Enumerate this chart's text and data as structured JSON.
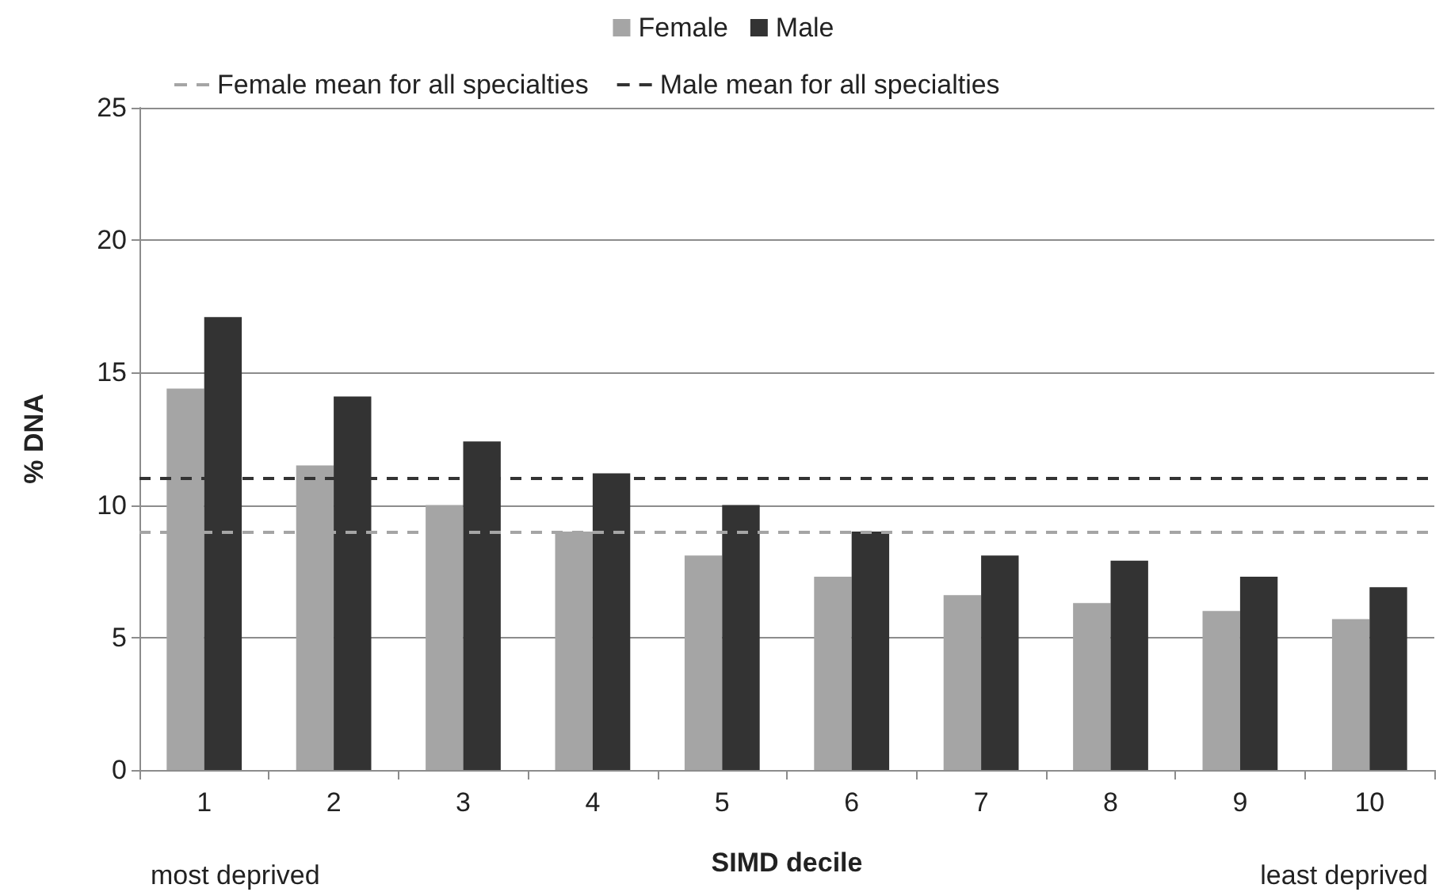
{
  "chart_data": {
    "type": "bar",
    "xlabel": "SIMD decile",
    "ylabel": "% DNA",
    "categories": [
      "1",
      "2",
      "3",
      "4",
      "5",
      "6",
      "7",
      "8",
      "9",
      "10"
    ],
    "series": [
      {
        "name": "Female",
        "color": "#a5a5a5",
        "values": [
          14.4,
          11.5,
          10.0,
          9.0,
          8.1,
          7.3,
          6.6,
          6.3,
          6.0,
          5.7
        ]
      },
      {
        "name": "Male",
        "color": "#333333",
        "values": [
          17.1,
          14.1,
          12.4,
          11.2,
          10.0,
          9.0,
          8.1,
          7.9,
          7.3,
          6.9
        ]
      }
    ],
    "ylim": [
      0,
      25
    ],
    "yticks": [
      0,
      5,
      10,
      15,
      20,
      25
    ],
    "grid": "y",
    "legend": "top",
    "ref_lines": [
      {
        "axis": "y",
        "value": 9,
        "label": "Female mean for all specialties",
        "color": "#a5a5a5",
        "line_style": "dashed"
      },
      {
        "axis": "y",
        "value": 11,
        "label": "Male mean for all specialties",
        "color": "#333333",
        "line_style": "dashed"
      }
    ],
    "annotations": [
      "most deprived",
      "least deprived"
    ]
  }
}
